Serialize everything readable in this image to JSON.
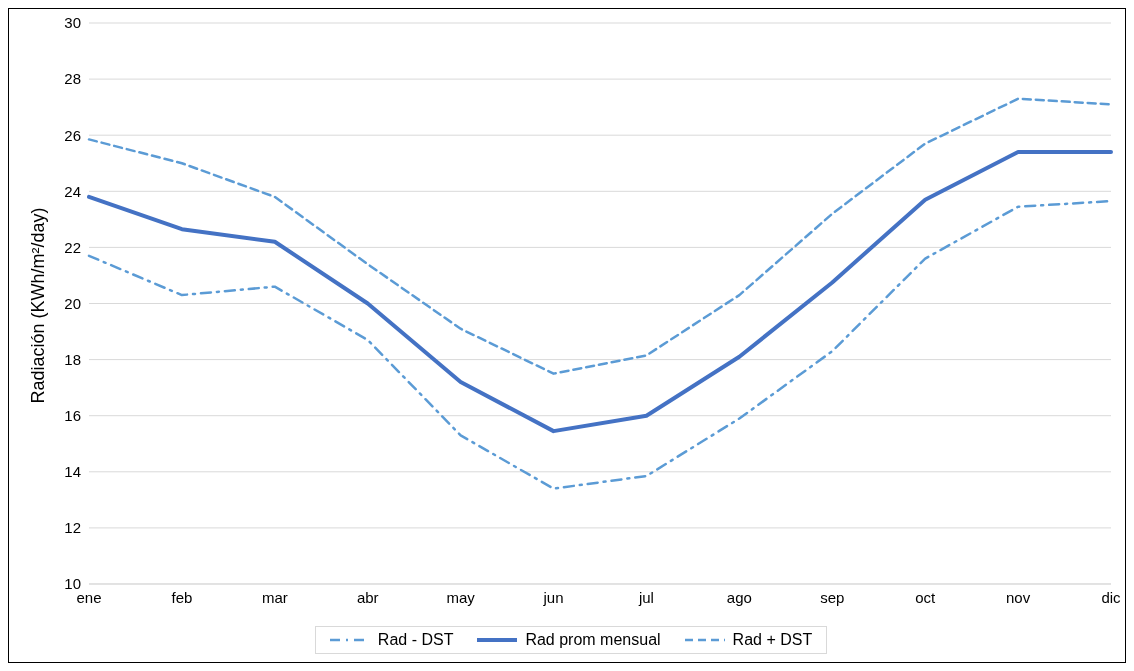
{
  "chart_data": {
    "type": "line",
    "ylabel": "Radiación (KWh/m²/day)",
    "categories": [
      "ene",
      "feb",
      "mar",
      "abr",
      "may",
      "jun",
      "jul",
      "ago",
      "sep",
      "oct",
      "nov",
      "dic"
    ],
    "series": [
      {
        "name": "Rad - DST",
        "color": "#5b9bd5",
        "line_style": "dashdot",
        "values": [
          21.7,
          20.3,
          20.6,
          18.7,
          15.3,
          13.4,
          13.85,
          15.9,
          18.3,
          21.6,
          23.45,
          23.65
        ]
      },
      {
        "name": "Rad prom mensual",
        "color": "#4472c4",
        "line_style": "solid",
        "values": [
          23.8,
          22.65,
          22.2,
          20.0,
          17.2,
          15.45,
          16.0,
          18.1,
          20.75,
          23.7,
          25.4,
          25.4
        ]
      },
      {
        "name": "Rad + DST",
        "color": "#5b9bd5",
        "line_style": "dashed",
        "values": [
          25.85,
          25.0,
          23.8,
          21.4,
          19.1,
          17.5,
          18.15,
          20.3,
          23.2,
          25.7,
          27.3,
          27.1
        ]
      }
    ],
    "ylim": [
      10,
      30
    ],
    "yticks": [
      10,
      12,
      14,
      16,
      18,
      20,
      22,
      24,
      26,
      28,
      30
    ],
    "grid": "y",
    "legend": "bottom",
    "marker": "none"
  }
}
